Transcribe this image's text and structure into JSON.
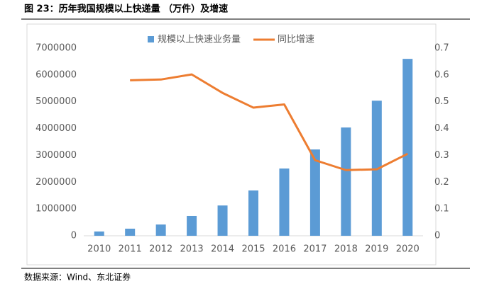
{
  "title": "图 23：历年我国规模以上快递量 （万件）及增速",
  "source": "数据来源：Wind、东北证券",
  "chart_data": {
    "type": "bar-line",
    "categories": [
      "2010",
      "2011",
      "2012",
      "2013",
      "2014",
      "2015",
      "2016",
      "2017",
      "2018",
      "2019",
      "2020"
    ],
    "series": [
      {
        "name": "规模以上快速业务量",
        "type": "bar",
        "color": "#5b9bd5",
        "values": [
          160000,
          265000,
          420000,
          740000,
          1130000,
          1690000,
          2510000,
          3220000,
          4040000,
          5040000,
          6600000
        ]
      },
      {
        "name": "同比增速",
        "type": "line",
        "axis": "y2",
        "color": "#ed7d31",
        "values": [
          null,
          0.58,
          0.583,
          0.602,
          0.533,
          0.478,
          0.49,
          0.282,
          0.245,
          0.248,
          0.306
        ]
      }
    ],
    "ylim": [
      0,
      7000000
    ],
    "yticks": [
      0,
      1000000,
      2000000,
      3000000,
      4000000,
      5000000,
      6000000,
      7000000
    ],
    "y2lim": [
      0,
      0.7
    ],
    "y2ticks": [
      0,
      0.1,
      0.2,
      0.3,
      0.4,
      0.5,
      0.6,
      0.7
    ],
    "legend": "top",
    "grid": false
  }
}
